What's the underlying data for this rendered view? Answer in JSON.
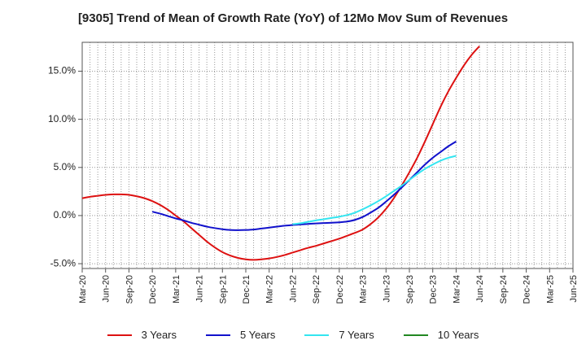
{
  "chart_data": {
    "type": "line",
    "title": "[9305]  Trend of Mean of Growth Rate (YoY) of 12Mo Mov Sum of Revenues",
    "xlabel": "",
    "ylabel": "",
    "ylim": [
      -5.5,
      18.0
    ],
    "yticks": [
      -5.0,
      0.0,
      5.0,
      10.0,
      15.0
    ],
    "ytick_labels": [
      "-5.0%",
      "0.0%",
      "5.0%",
      "10.0%",
      "15.0%"
    ],
    "xticks": [
      "Mar-20",
      "Jun-20",
      "Sep-20",
      "Dec-20",
      "Mar-21",
      "Jun-21",
      "Sep-21",
      "Dec-21",
      "Mar-22",
      "Jun-22",
      "Sep-22",
      "Dec-22",
      "Mar-23",
      "Jun-23",
      "Sep-23",
      "Dec-23",
      "Mar-24",
      "Jun-24",
      "Sep-24",
      "Dec-24",
      "Mar-25",
      "Jun-25"
    ],
    "grid": true,
    "legend_position": "bottom",
    "series": [
      {
        "name": "3 Years",
        "color": "#dd1111",
        "start_index": 0,
        "values": [
          1.8,
          1.95,
          2.05,
          2.15,
          2.2,
          2.2,
          2.15,
          2.0,
          1.8,
          1.5,
          1.1,
          0.6,
          0.0,
          -0.6,
          -1.3,
          -2.0,
          -2.7,
          -3.3,
          -3.8,
          -4.15,
          -4.4,
          -4.55,
          -4.6,
          -4.55,
          -4.45,
          -4.3,
          -4.1,
          -3.85,
          -3.6,
          -3.35,
          -3.15,
          -2.9,
          -2.65,
          -2.4,
          -2.1,
          -1.8,
          -1.45,
          -0.9,
          -0.2,
          0.7,
          1.8,
          3.1,
          4.5,
          6.0,
          7.7,
          9.5,
          11.3,
          12.9,
          14.3,
          15.6,
          16.7,
          17.6
        ]
      },
      {
        "name": "5 Years",
        "color": "#1111cc",
        "start_index": 9,
        "values": [
          0.4,
          0.2,
          -0.05,
          -0.3,
          -0.5,
          -0.75,
          -0.95,
          -1.15,
          -1.3,
          -1.42,
          -1.5,
          -1.52,
          -1.5,
          -1.45,
          -1.35,
          -1.25,
          -1.15,
          -1.05,
          -0.98,
          -0.92,
          -0.87,
          -0.82,
          -0.78,
          -0.75,
          -0.7,
          -0.62,
          -0.45,
          -0.15,
          0.3,
          0.8,
          1.45,
          2.15,
          2.9,
          3.7,
          4.5,
          5.3,
          6.0,
          6.6,
          7.2,
          7.7
        ]
      },
      {
        "name": "7 Years",
        "color": "#33e5f0",
        "start_index": 27,
        "values": [
          -0.9,
          -0.8,
          -0.65,
          -0.5,
          -0.38,
          -0.25,
          -0.12,
          0.05,
          0.3,
          0.65,
          1.05,
          1.5,
          2.0,
          2.55,
          3.1,
          3.7,
          4.3,
          4.85,
          5.3,
          5.7,
          6.0,
          6.2
        ]
      },
      {
        "name": "10 Years",
        "color": "#228822",
        "start_index": 0,
        "values": []
      }
    ]
  }
}
